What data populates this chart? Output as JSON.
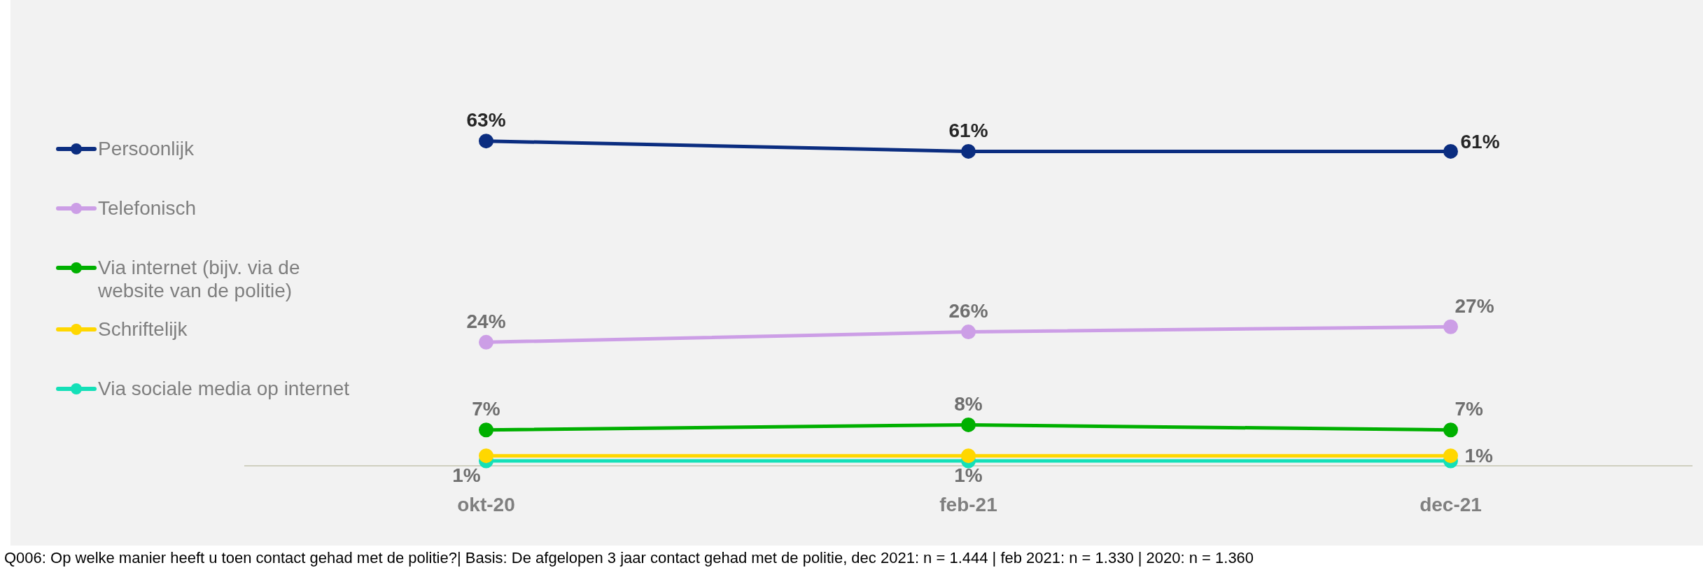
{
  "chart_data": {
    "type": "line",
    "categories": [
      "okt-20",
      "feb-21",
      "dec-21"
    ],
    "series": [
      {
        "name": "Persoonlijk",
        "color": "#0b2d80",
        "values": [
          63,
          61,
          61
        ],
        "value_labels": [
          "63%",
          "61%",
          "61%"
        ]
      },
      {
        "name": "Telefonisch",
        "color": "#cc9ee6",
        "values": [
          24,
          26,
          27
        ],
        "value_labels": [
          "24%",
          "26%",
          "27%"
        ]
      },
      {
        "name": "Via internet (bijv. via de website van de politie)",
        "color": "#00b000",
        "values": [
          7,
          8,
          7
        ],
        "value_labels": [
          "7%",
          "8%",
          "7%"
        ]
      },
      {
        "name": "Schriftelijk",
        "color": "#ffd700",
        "values": [
          2,
          2,
          2
        ]
      },
      {
        "name": "Via sociale media op internet",
        "color": "#14e0b8",
        "values": [
          1,
          1,
          1
        ],
        "value_labels": [
          "1%",
          "1%",
          "1%"
        ]
      }
    ],
    "legend": "left",
    "marker": "circle",
    "line_style": "solid",
    "annotations": [
      "Q006: Op welke manier heeft u toen contact gehad met de politie?| Basis: De afgelopen 3 jaar contact gehad met de politie, dec 2021: n = 1.444 | feb 2021: n = 1.330 | 2020: n = 1.360"
    ]
  }
}
